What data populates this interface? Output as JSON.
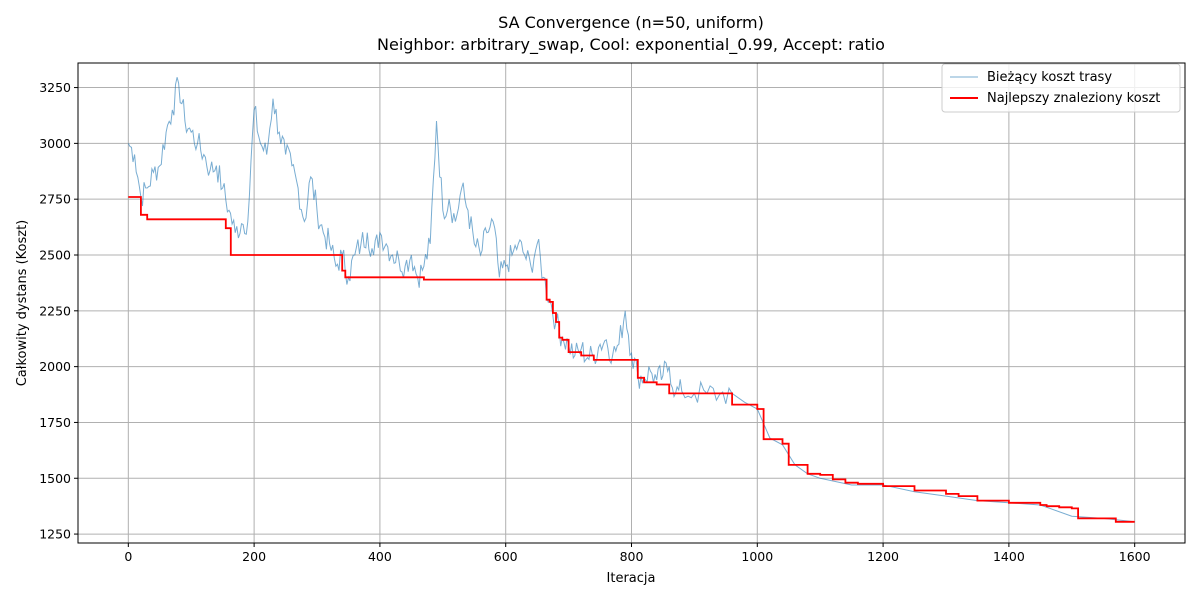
{
  "chart_data": {
    "type": "line",
    "title": "SA Convergence (n=50, uniform)",
    "subtitle": "Neighbor: arbitrary_swap, Cool: exponential_0.99, Accept: ratio",
    "xlabel": "Iteracja",
    "ylabel": "Całkowity dystans (Koszt)",
    "xlim": [
      -80,
      1680
    ],
    "ylim": [
      1210,
      3360
    ],
    "xticks": [
      0,
      200,
      400,
      600,
      800,
      1000,
      1200,
      1400,
      1600
    ],
    "yticks": [
      1250,
      1500,
      1750,
      2000,
      2250,
      2500,
      2750,
      3000,
      3250
    ],
    "grid": true,
    "legend_position": "top-right",
    "colors": {
      "current": "#1f77b4",
      "best": "#ff0000"
    },
    "series": [
      {
        "name": "Bieżący koszt trasy",
        "style": "thin-noisy",
        "x": [
          0,
          10,
          20,
          30,
          40,
          50,
          60,
          70,
          80,
          90,
          100,
          110,
          120,
          130,
          140,
          150,
          160,
          170,
          180,
          190,
          200,
          210,
          220,
          230,
          240,
          250,
          260,
          270,
          280,
          290,
          300,
          310,
          320,
          330,
          340,
          350,
          360,
          370,
          380,
          390,
          400,
          410,
          420,
          430,
          440,
          450,
          460,
          470,
          480,
          490,
          500,
          510,
          520,
          530,
          540,
          550,
          560,
          570,
          580,
          590,
          600,
          610,
          620,
          630,
          640,
          650,
          660,
          670,
          680,
          690,
          700,
          710,
          720,
          730,
          740,
          750,
          760,
          770,
          780,
          790,
          800,
          810,
          820,
          830,
          840,
          850,
          860,
          870,
          880,
          900,
          920,
          940,
          960,
          980,
          1000,
          1020,
          1040,
          1060,
          1080,
          1100,
          1150,
          1200,
          1250,
          1300,
          1350,
          1400,
          1450,
          1500,
          1550,
          1600
        ],
        "values": [
          3000,
          2950,
          2760,
          2800,
          2870,
          2900,
          3050,
          3150,
          3270,
          3100,
          3050,
          3000,
          2950,
          2880,
          2900,
          2800,
          2700,
          2600,
          2640,
          2650,
          3150,
          3000,
          2950,
          3200,
          3050,
          2950,
          2900,
          2800,
          2650,
          2850,
          2700,
          2600,
          2550,
          2450,
          2500,
          2400,
          2500,
          2550,
          2600,
          2500,
          2600,
          2550,
          2500,
          2480,
          2450,
          2500,
          2400,
          2450,
          2550,
          3100,
          2700,
          2750,
          2650,
          2800,
          2700,
          2550,
          2500,
          2600,
          2650,
          2400,
          2450,
          2500,
          2550,
          2500,
          2450,
          2550,
          2400,
          2300,
          2200,
          2130,
          2100,
          2050,
          2080,
          2040,
          2050,
          2100,
          2120,
          2050,
          2100,
          2250,
          2060,
          1960,
          1950,
          1980,
          1940,
          1960,
          2000,
          1880,
          1890,
          1880,
          1880,
          1875,
          1880,
          1840,
          1810,
          1680,
          1650,
          1560,
          1520,
          1500,
          1470,
          1470,
          1440,
          1420,
          1400,
          1390,
          1380,
          1330,
          1320,
          1305
        ]
      },
      {
        "name": "Najlepszy znaleziony koszt",
        "style": "step",
        "x": [
          0,
          15,
          20,
          30,
          150,
          155,
          160,
          163,
          320,
          340,
          345,
          470,
          660,
          665,
          670,
          675,
          680,
          685,
          690,
          700,
          720,
          740,
          805,
          810,
          820,
          840,
          860,
          960,
          1000,
          1010,
          1040,
          1050,
          1080,
          1100,
          1120,
          1140,
          1160,
          1200,
          1250,
          1300,
          1320,
          1350,
          1400,
          1450,
          1460,
          1470,
          1480,
          1500,
          1510,
          1570,
          1600
        ],
        "values": [
          2760,
          2760,
          2680,
          2660,
          2660,
          2620,
          2620,
          2500,
          2500,
          2430,
          2400,
          2390,
          2390,
          2300,
          2290,
          2240,
          2200,
          2130,
          2120,
          2065,
          2050,
          2030,
          2030,
          1950,
          1930,
          1920,
          1880,
          1830,
          1810,
          1675,
          1655,
          1560,
          1520,
          1515,
          1495,
          1480,
          1475,
          1465,
          1445,
          1430,
          1420,
          1400,
          1390,
          1380,
          1375,
          1375,
          1370,
          1365,
          1320,
          1305,
          1305
        ]
      }
    ]
  }
}
